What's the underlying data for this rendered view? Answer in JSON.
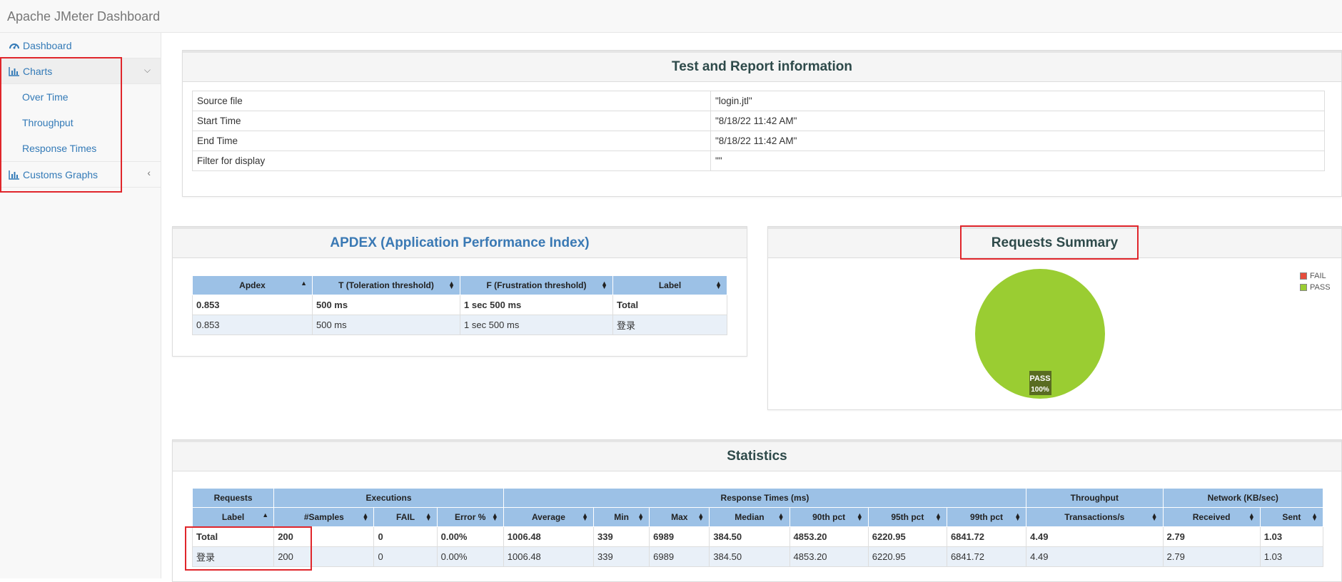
{
  "app": {
    "title": "Apache JMeter Dashboard"
  },
  "sidebar": {
    "dashboard": "Dashboard",
    "charts": "Charts",
    "charts_items": [
      "Over Time",
      "Throughput",
      "Response Times"
    ],
    "customs": "Customs Graphs"
  },
  "info": {
    "title": "Test and Report information",
    "rows": [
      {
        "key": "Source file",
        "value": "\"login.jtl\""
      },
      {
        "key": "Start Time",
        "value": "\"8/18/22 11:42 AM\""
      },
      {
        "key": "End Time",
        "value": "\"8/18/22 11:42 AM\""
      },
      {
        "key": "Filter for display",
        "value": "\"\""
      }
    ]
  },
  "apdex": {
    "title": "APDEX (Application Performance Index)",
    "headers": [
      "Apdex",
      "T (Toleration threshold)",
      "F (Frustration threshold)",
      "Label"
    ],
    "total": [
      "0.853",
      "500 ms",
      "1 sec 500 ms",
      "Total"
    ],
    "row": [
      "0.853",
      "500 ms",
      "1 sec 500 ms",
      "登录"
    ]
  },
  "summary": {
    "title": "Requests Summary",
    "legend": [
      "FAIL",
      "PASS"
    ],
    "slice_label": "PASS",
    "slice_pct": "100%",
    "colors": {
      "fail": "#e74c3c",
      "pass": "#9acd32"
    }
  },
  "chart_data": {
    "type": "pie",
    "title": "Requests Summary",
    "categories": [
      "FAIL",
      "PASS"
    ],
    "values": [
      0,
      100
    ],
    "legend": "top-right"
  },
  "statistics": {
    "title": "Statistics",
    "groups": [
      "Requests",
      "Executions",
      "Response Times (ms)",
      "Throughput",
      "Network (KB/sec)"
    ],
    "headers": [
      "Label",
      "#Samples",
      "FAIL",
      "Error %",
      "Average",
      "Min",
      "Max",
      "Median",
      "90th pct",
      "95th pct",
      "99th pct",
      "Transactions/s",
      "Received",
      "Sent"
    ],
    "total": [
      "Total",
      "200",
      "0",
      "0.00%",
      "1006.48",
      "339",
      "6989",
      "384.50",
      "4853.20",
      "6220.95",
      "6841.72",
      "4.49",
      "2.79",
      "1.03"
    ],
    "row": [
      "登录",
      "200",
      "0",
      "0.00%",
      "1006.48",
      "339",
      "6989",
      "384.50",
      "4853.20",
      "6220.95",
      "6841.72",
      "4.49",
      "2.79",
      "1.03"
    ]
  }
}
